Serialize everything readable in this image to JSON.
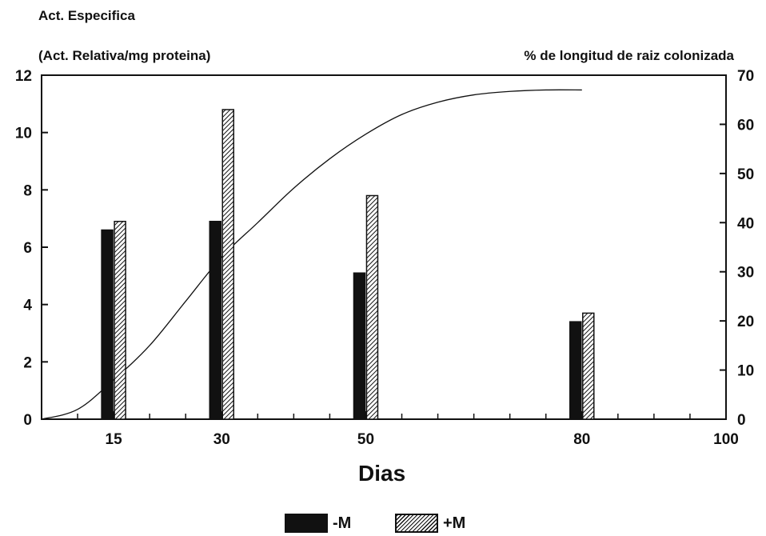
{
  "chart_data": {
    "type": "bar",
    "title": "Act. Especifica",
    "ylabel_left": "(Act. Relativa/mg proteina)",
    "ylabel_right": "% de longitud de raiz colonizada",
    "xlabel": "Dias",
    "xlim": [
      5,
      100
    ],
    "x_ticks": [
      15,
      30,
      50,
      80,
      100
    ],
    "ylim_left": [
      0,
      12
    ],
    "y_ticks_left": [
      0,
      2,
      4,
      6,
      8,
      10,
      12
    ],
    "ylim_right": [
      0,
      70
    ],
    "y_ticks_right": [
      0,
      10,
      20,
      30,
      40,
      50,
      60,
      70
    ],
    "x": [
      15,
      30,
      50,
      80
    ],
    "series": [
      {
        "name": "-M",
        "axis": "left",
        "pattern": "solid",
        "values": [
          6.6,
          6.9,
          5.1,
          3.4
        ]
      },
      {
        "name": "+M",
        "axis": "left",
        "pattern": "hatched",
        "values": [
          6.9,
          10.8,
          7.8,
          3.7
        ]
      }
    ],
    "curve": {
      "axis": "right",
      "points": [
        [
          5,
          0
        ],
        [
          10,
          2
        ],
        [
          15,
          8
        ],
        [
          20,
          15
        ],
        [
          25,
          24
        ],
        [
          30,
          33
        ],
        [
          35,
          40
        ],
        [
          40,
          47
        ],
        [
          45,
          53
        ],
        [
          50,
          58
        ],
        [
          55,
          62
        ],
        [
          60,
          64.5
        ],
        [
          65,
          66
        ],
        [
          70,
          66.7
        ],
        [
          75,
          67
        ],
        [
          80,
          67
        ]
      ]
    },
    "legend": {
      "position": "bottom-center"
    },
    "grid": false,
    "colors": {
      "ink": "#111111",
      "background": "#ffffff"
    }
  }
}
